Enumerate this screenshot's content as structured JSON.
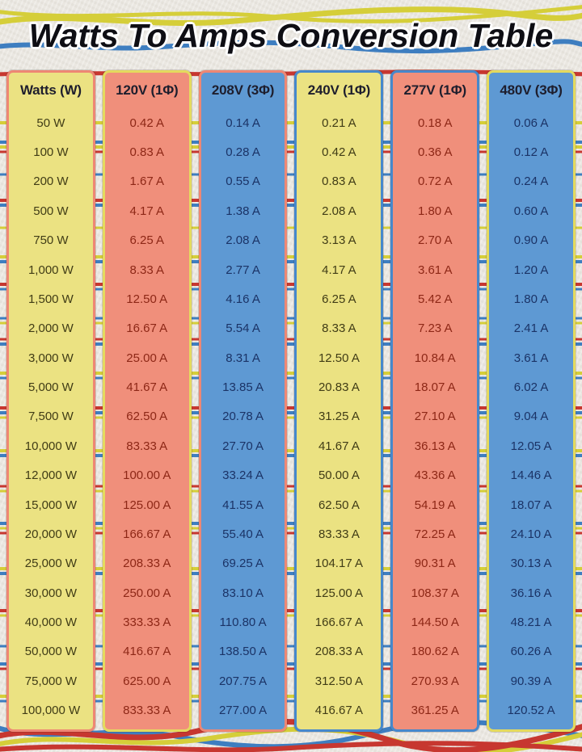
{
  "title": "Watts To Amps Conversion Table",
  "table": {
    "columns": [
      {
        "header": "Watts (W)",
        "theme": "yellow",
        "border_theme": "salmon",
        "values": [
          "50 W",
          "100 W",
          "200 W",
          "500 W",
          "750 W",
          "1,000 W",
          "1,500 W",
          "2,000 W",
          "3,000 W",
          "5,000 W",
          "7,500 W",
          "10,000 W",
          "12,000 W",
          "15,000 W",
          "20,000 W",
          "25,000 W",
          "30,000 W",
          "40,000 W",
          "50,000 W",
          "75,000 W",
          "100,000 W"
        ]
      },
      {
        "header": "120V (1Φ)",
        "theme": "salmon",
        "border_theme": "yellow",
        "values": [
          "0.42 A",
          "0.83 A",
          "1.67 A",
          "4.17 A",
          "6.25 A",
          "8.33 A",
          "12.50 A",
          "16.67 A",
          "25.00 A",
          "41.67 A",
          "62.50 A",
          "83.33 A",
          "100.00 A",
          "125.00 A",
          "166.67 A",
          "208.33 A",
          "250.00 A",
          "333.33 A",
          "416.67 A",
          "625.00 A",
          "833.33 A"
        ]
      },
      {
        "header": "208V (3Φ)",
        "theme": "blue",
        "border_theme": "salmon",
        "values": [
          "0.14 A",
          "0.28 A",
          "0.55 A",
          "1.38 A",
          "2.08 A",
          "2.77 A",
          "4.16 A",
          "5.54 A",
          "8.31 A",
          "13.85 A",
          "20.78 A",
          "27.70 A",
          "33.24 A",
          "41.55 A",
          "55.40 A",
          "69.25 A",
          "83.10 A",
          "110.80 A",
          "138.50 A",
          "207.75 A",
          "277.00 A"
        ]
      },
      {
        "header": "240V (1Φ)",
        "theme": "yellow",
        "border_theme": "blue",
        "values": [
          "0.21 A",
          "0.42 A",
          "0.83 A",
          "2.08 A",
          "3.13 A",
          "4.17 A",
          "6.25 A",
          "8.33 A",
          "12.50 A",
          "20.83 A",
          "31.25 A",
          "41.67 A",
          "50.00 A",
          "62.50 A",
          "83.33 A",
          "104.17 A",
          "125.00 A",
          "166.67 A",
          "208.33 A",
          "312.50 A",
          "416.67 A"
        ]
      },
      {
        "header": "277V (1Φ)",
        "theme": "salmon",
        "border_theme": "blue",
        "values": [
          "0.18 A",
          "0.36 A",
          "0.72 A",
          "1.80 A",
          "2.70 A",
          "3.61 A",
          "5.42 A",
          "7.23 A",
          "10.84 A",
          "18.07 A",
          "27.10 A",
          "36.13 A",
          "43.36 A",
          "54.19 A",
          "72.25 A",
          "90.31 A",
          "108.37 A",
          "144.50 A",
          "180.62 A",
          "270.93 A",
          "361.25 A"
        ]
      },
      {
        "header": "480V (3Φ)",
        "theme": "blue",
        "border_theme": "yellow",
        "values": [
          "0.06 A",
          "0.12 A",
          "0.24 A",
          "0.60 A",
          "0.90 A",
          "1.20 A",
          "1.80 A",
          "2.41 A",
          "3.61 A",
          "6.02 A",
          "9.04 A",
          "12.05 A",
          "14.46 A",
          "18.07 A",
          "24.10 A",
          "30.13 A",
          "36.16 A",
          "48.21 A",
          "60.26 A",
          "90.39 A",
          "120.52 A"
        ]
      }
    ]
  },
  "colors": {
    "page_bg": "#eae7e1",
    "yellow_bg": "#ebe282",
    "salmon_bg": "#f08f7b",
    "blue_bg": "#5e99d3",
    "yellow_border": "#e4da5e",
    "salmon_border": "#ee8774",
    "blue_border": "#4688cc",
    "yellow_text": "#403c16",
    "salmon_text": "#8d2716",
    "blue_text": "#1b3366",
    "header_text": "#1e1e2d",
    "wire_red": "#c73730",
    "wire_blue": "#3e7ec0",
    "wire_yellow": "#d5ce39"
  }
}
